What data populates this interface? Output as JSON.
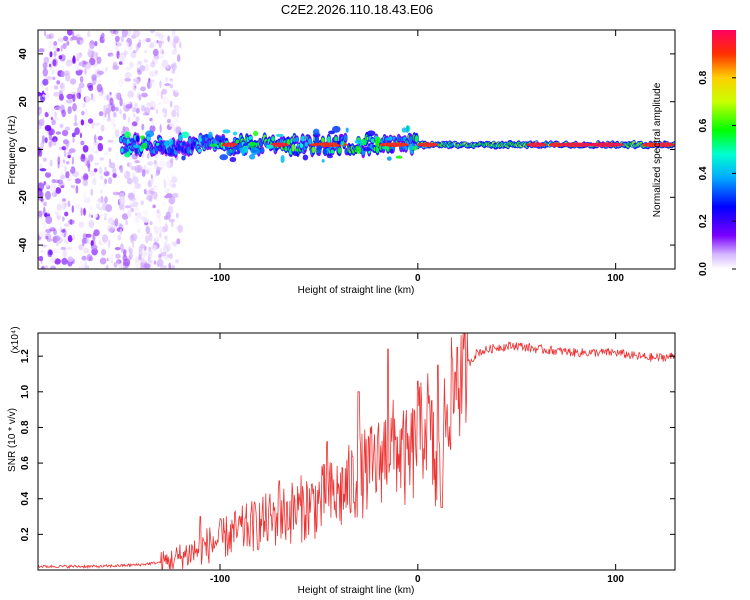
{
  "title": "C2E2.2026.110.18.43.E06",
  "chart_data": [
    {
      "type": "heatmap",
      "xlabel": "Height of straight line (km)",
      "ylabel": "Frequency (Hz)",
      "xlim": [
        -192,
        130
      ],
      "ylim": [
        -50,
        50
      ],
      "xticks": [
        -100,
        0,
        100
      ],
      "yticks": [
        -40,
        -20,
        0,
        20,
        40
      ],
      "colorbar": {
        "label": "Normalized spectral amplitude",
        "range": [
          0,
          1
        ],
        "ticks": [
          0.0,
          0.2,
          0.4,
          0.6,
          0.8
        ]
      },
      "ridge": {
        "frequency_hz": 2,
        "start_height_km": -150,
        "end_height_km": 130,
        "noise_region_end_km": -120
      }
    },
    {
      "type": "line",
      "xlabel": "Height of straight line (km)",
      "ylabel": "SNR (10 * v/v)",
      "multiplier": "(x10⁴)",
      "xlim": [
        -192,
        130
      ],
      "ylim": [
        0,
        1.33
      ],
      "xticks": [
        -100,
        0,
        100
      ],
      "yticks": [
        0.2,
        0.4,
        0.6,
        0.8,
        1.0,
        1.2
      ],
      "color": "#ee3333",
      "series": [
        {
          "name": "SNR",
          "x": [
            -192,
            -160,
            -140,
            -125,
            -110,
            -100,
            -90,
            -80,
            -70,
            -60,
            -50,
            -40,
            -30,
            -20,
            -15,
            -10,
            -5,
            0,
            5,
            10,
            15,
            20,
            25,
            30,
            40,
            50,
            60,
            80,
            100,
            110,
            120,
            130
          ],
          "y": [
            0.02,
            0.02,
            0.03,
            0.05,
            0.12,
            0.17,
            0.22,
            0.26,
            0.3,
            0.34,
            0.38,
            0.42,
            0.52,
            0.6,
            0.7,
            0.68,
            0.6,
            0.72,
            0.85,
            0.48,
            0.95,
            1.02,
            1.15,
            1.22,
            1.25,
            1.26,
            1.24,
            1.22,
            1.22,
            1.2,
            1.19,
            1.2
          ],
          "spikes": [
            {
              "x": -110,
              "y": 0.3
            },
            {
              "x": -70,
              "y": 0.5
            },
            {
              "x": -46,
              "y": 0.72
            },
            {
              "x": -30,
              "y": 1.0
            },
            {
              "x": -15,
              "y": 1.24
            },
            {
              "x": 0,
              "y": 1.06
            },
            {
              "x": 10,
              "y": 1.15
            },
            {
              "x": 12,
              "y": 0.35
            },
            {
              "x": 20,
              "y": 1.25
            }
          ]
        }
      ]
    }
  ]
}
